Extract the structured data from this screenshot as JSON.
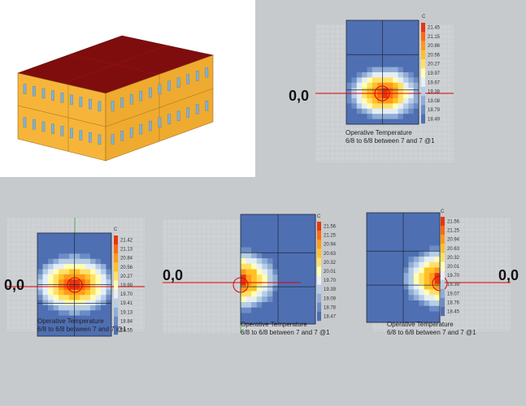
{
  "colors": {
    "background": "#c7cacd",
    "grid_bg": "#cfd2d5",
    "grid_line": "#bcc0c4",
    "building_wall": "#f6b53a",
    "building_roof": "#7f0d0d",
    "window": "#7fb2d6",
    "origin_line": "#e00000",
    "scale": [
      "#4f6fb3",
      "#6c8cc4",
      "#8fadd6",
      "#b7cde6",
      "#e5eef7",
      "#ffffb3",
      "#ffe066",
      "#ffc125",
      "#ff9a1a",
      "#ff6a10",
      "#e8360c"
    ]
  },
  "units_label": "C",
  "origin_label": "0,0",
  "caption_line1": "Operative Temperature",
  "caption_line2": "6/8 to 6/8 between 7 and 7 @1",
  "panels": [
    {
      "id": "top",
      "legend_values": [
        "21.45",
        "21.15",
        "20.86",
        "20.56",
        "20.27",
        "19.97",
        "19.67",
        "19.38",
        "19.08",
        "18.79",
        "18.49"
      ],
      "hotspot": "center"
    },
    {
      "id": "bottom-left",
      "legend_values": [
        "21.42",
        "21.13",
        "20.84",
        "20.56",
        "20.27",
        "19.99",
        "19.70",
        "19.41",
        "19.13",
        "18.84",
        "18.55"
      ],
      "hotspot": "center"
    },
    {
      "id": "bottom-middle",
      "legend_values": [
        "21.56",
        "21.25",
        "20.94",
        "20.63",
        "20.32",
        "20.01",
        "19.70",
        "19.39",
        "19.09",
        "18.78",
        "18.47"
      ],
      "hotspot": "left-edge"
    },
    {
      "id": "bottom-right",
      "legend_values": [
        "21.56",
        "21.25",
        "20.94",
        "20.63",
        "20.32",
        "20.01",
        "19.70",
        "19.39",
        "19.07",
        "18.76",
        "18.45"
      ],
      "hotspot": "right-edge"
    }
  ]
}
